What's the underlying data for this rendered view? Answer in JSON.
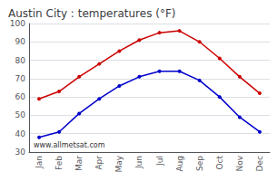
{
  "chart_data": {
    "type": "line",
    "title": "Austin City : temperatures (°F)",
    "categories": [
      "Jan",
      "Feb",
      "Mar",
      "Apr",
      "May",
      "Jun",
      "Jul",
      "Aug",
      "Sep",
      "Oct",
      "Nov",
      "Dec"
    ],
    "series": [
      {
        "color": "#cc0000",
        "values": [
          59,
          63,
          71,
          78,
          85,
          91,
          95,
          96,
          90,
          81,
          71,
          62
        ]
      },
      {
        "color": "#0000cc",
        "values": [
          38,
          41,
          51,
          59,
          66,
          71,
          74,
          74,
          69,
          60,
          49,
          41
        ]
      }
    ],
    "ylim": [
      30,
      100
    ],
    "yticks": [
      30,
      40,
      50,
      60,
      70,
      80,
      90,
      100
    ],
    "grid": true,
    "marker": "circle",
    "annotations": [
      {
        "text": "www.allmetsat.com"
      }
    ]
  }
}
